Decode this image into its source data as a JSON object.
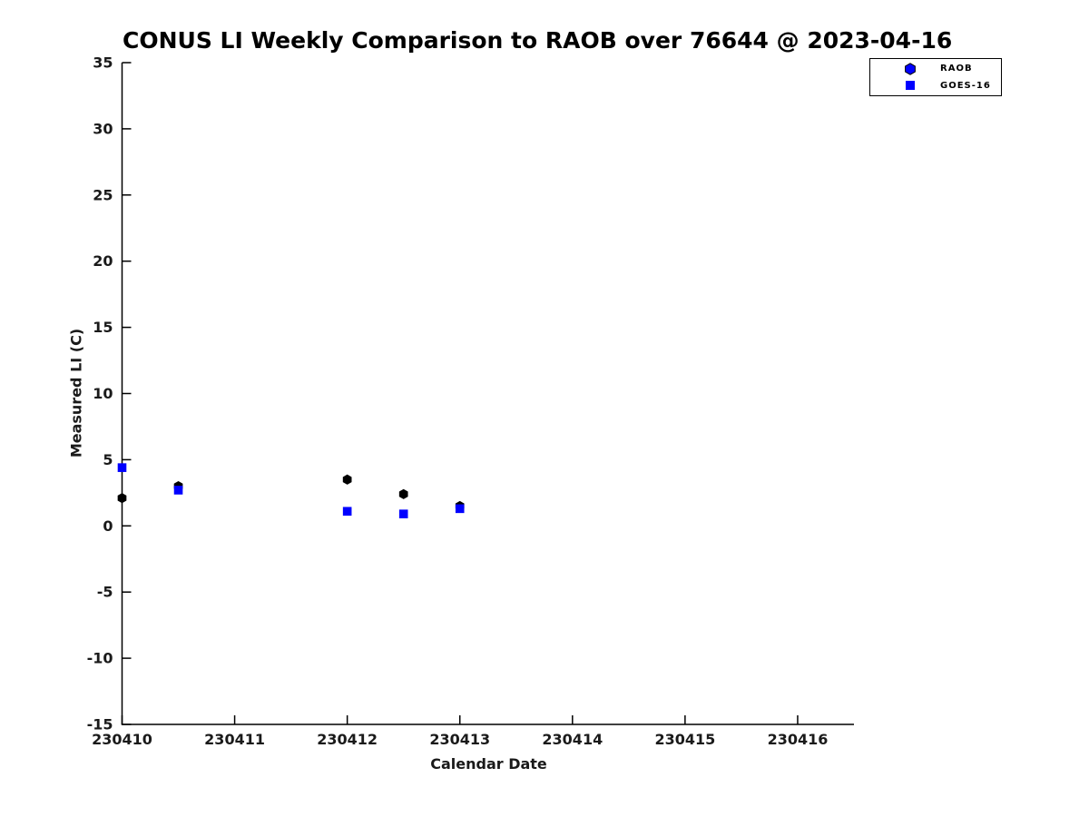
{
  "chart_data": {
    "type": "scatter",
    "title": "CONUS LI Weekly Comparison to RAOB over 76644 @ 2023-04-16",
    "xlabel": "Calendar Date",
    "ylabel": "Measured LI (C)",
    "xlim": [
      230410,
      230416.5
    ],
    "ylim": [
      -15,
      35
    ],
    "xticks": [
      "230410",
      "230411",
      "230412",
      "230413",
      "230414",
      "230415",
      "230416"
    ],
    "yticks": [
      "-15",
      "-10",
      "-5",
      "0",
      "5",
      "10",
      "15",
      "20",
      "25",
      "30",
      "35"
    ],
    "grid": false,
    "legend_position": "upper right",
    "axis_color": "#000000",
    "legend_marker_color": "#0000ff",
    "series": [
      {
        "name": "RAOB",
        "marker": "hexagon",
        "color": "#000000",
        "x": [
          230410.0,
          230410.5,
          230412.0,
          230412.5,
          230413.0
        ],
        "y": [
          2.1,
          3.0,
          3.5,
          2.4,
          1.5
        ]
      },
      {
        "name": "GOES-16",
        "marker": "square",
        "color": "#0000ff",
        "x": [
          230410.0,
          230410.5,
          230412.0,
          230412.5,
          230413.0
        ],
        "y": [
          4.4,
          2.7,
          1.1,
          0.9,
          1.3
        ]
      }
    ]
  }
}
